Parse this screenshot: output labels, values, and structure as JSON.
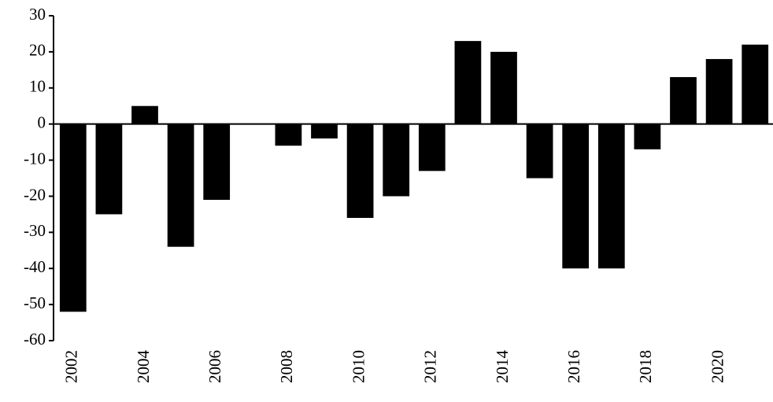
{
  "chart_data": {
    "type": "bar",
    "categories": [
      "2002",
      null,
      "2004",
      null,
      "2006",
      null,
      "2008",
      null,
      "2010",
      null,
      "2012",
      null,
      "2014",
      null,
      "2016",
      null,
      "2018",
      null,
      "2020",
      null
    ],
    "values": [
      -52,
      -25,
      5,
      -34,
      -21,
      0,
      -6,
      -4,
      -26,
      -20,
      -13,
      23,
      20,
      -15,
      -40,
      -40,
      -7,
      13,
      18,
      22
    ],
    "color": "#000000",
    "ylim": [
      -60,
      30
    ],
    "yticks": [
      -60,
      -50,
      -40,
      -30,
      -20,
      -10,
      0,
      10,
      20,
      30
    ],
    "grid": false
  }
}
